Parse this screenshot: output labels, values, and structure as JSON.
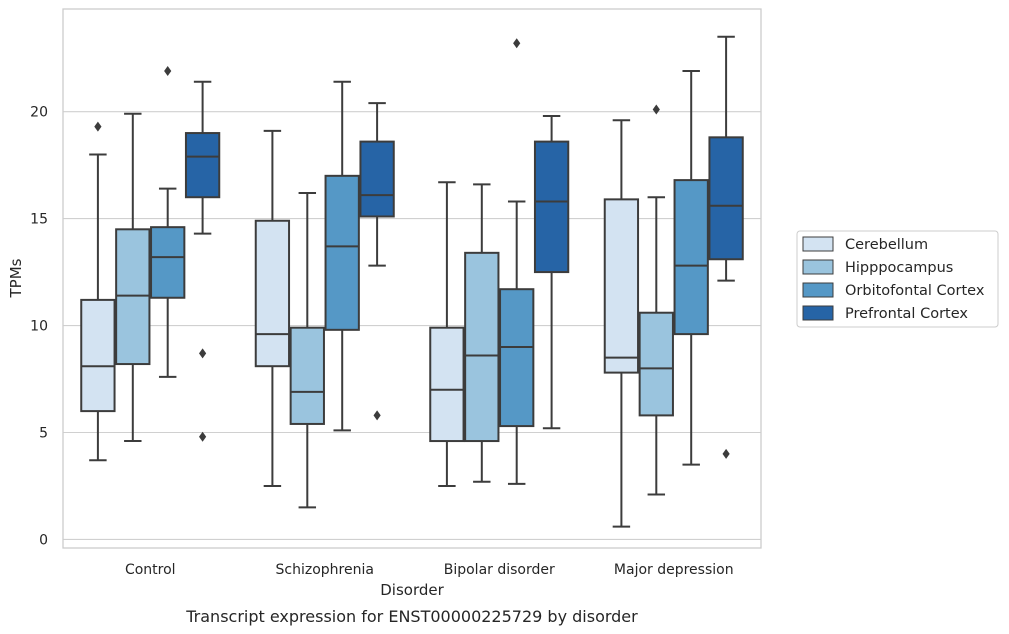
{
  "caption": "Transcript expression for ENST00000225729 by disorder",
  "chart_data": {
    "type": "box",
    "xlabel": "Disorder",
    "ylabel": "TPMs",
    "ylim": [
      -0.4,
      24.8
    ],
    "yticks": [
      0,
      5,
      10,
      15,
      20
    ],
    "grid": "horizontal",
    "legend_position": "right",
    "categories": [
      "Control",
      "Schizophrenia",
      "Bipolar disorder",
      "Major depression"
    ],
    "series": [
      {
        "name": "Cerebellum",
        "color": "#d3e3f2",
        "boxes": [
          {
            "whisker_low": 3.7,
            "q1": 6.0,
            "median": 8.1,
            "q3": 11.2,
            "whisker_high": 18.0,
            "outliers": [
              19.3
            ]
          },
          {
            "whisker_low": 2.5,
            "q1": 8.1,
            "median": 9.6,
            "q3": 14.9,
            "whisker_high": 19.1,
            "outliers": []
          },
          {
            "whisker_low": 2.5,
            "q1": 4.6,
            "median": 7.0,
            "q3": 9.9,
            "whisker_high": 16.7,
            "outliers": []
          },
          {
            "whisker_low": 0.6,
            "q1": 7.8,
            "median": 8.5,
            "q3": 15.9,
            "whisker_high": 19.6,
            "outliers": []
          }
        ]
      },
      {
        "name": "Hipppocampus",
        "color": "#9ac4de",
        "boxes": [
          {
            "whisker_low": 4.6,
            "q1": 8.2,
            "median": 11.4,
            "q3": 14.5,
            "whisker_high": 19.9,
            "outliers": []
          },
          {
            "whisker_low": 1.5,
            "q1": 5.4,
            "median": 6.9,
            "q3": 9.9,
            "whisker_high": 16.2,
            "outliers": []
          },
          {
            "whisker_low": 2.7,
            "q1": 4.6,
            "median": 8.6,
            "q3": 13.4,
            "whisker_high": 16.6,
            "outliers": []
          },
          {
            "whisker_low": 2.1,
            "q1": 5.8,
            "median": 8.0,
            "q3": 10.6,
            "whisker_high": 16.0,
            "outliers": [
              20.1
            ]
          }
        ]
      },
      {
        "name": "Orbitofontal Cortex",
        "color": "#5598c6",
        "boxes": [
          {
            "whisker_low": 7.6,
            "q1": 11.3,
            "median": 13.2,
            "q3": 14.6,
            "whisker_high": 16.4,
            "outliers": [
              21.9
            ]
          },
          {
            "whisker_low": 5.1,
            "q1": 9.8,
            "median": 13.7,
            "q3": 17.0,
            "whisker_high": 21.4,
            "outliers": []
          },
          {
            "whisker_low": 2.6,
            "q1": 5.3,
            "median": 9.0,
            "q3": 11.7,
            "whisker_high": 15.8,
            "outliers": [
              23.2
            ]
          },
          {
            "whisker_low": 3.5,
            "q1": 9.6,
            "median": 12.8,
            "q3": 16.8,
            "whisker_high": 21.9,
            "outliers": []
          }
        ]
      },
      {
        "name": "Prefrontal Cortex",
        "color": "#2664a6",
        "boxes": [
          {
            "whisker_low": 14.3,
            "q1": 16.0,
            "median": 17.9,
            "q3": 19.0,
            "whisker_high": 21.4,
            "outliers": [
              8.7,
              4.8
            ]
          },
          {
            "whisker_low": 12.8,
            "q1": 15.1,
            "median": 16.1,
            "q3": 18.6,
            "whisker_high": 20.4,
            "outliers": [
              5.8
            ]
          },
          {
            "whisker_low": 5.2,
            "q1": 12.5,
            "median": 15.8,
            "q3": 18.6,
            "whisker_high": 19.8,
            "outliers": []
          },
          {
            "whisker_low": 12.1,
            "q1": 13.1,
            "median": 15.6,
            "q3": 18.8,
            "whisker_high": 23.5,
            "outliers": [
              4.0
            ]
          }
        ]
      }
    ]
  }
}
